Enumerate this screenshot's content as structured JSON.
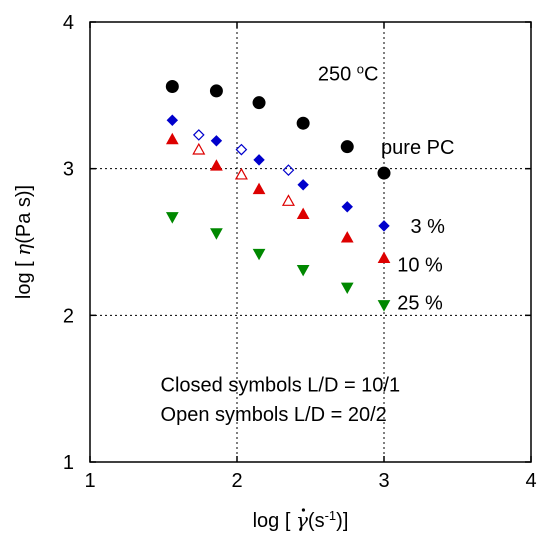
{
  "chart_data": {
    "type": "scatter",
    "xlim": [
      1,
      4
    ],
    "ylim": [
      1,
      4
    ],
    "x_ticks": [
      "1",
      "2",
      "3",
      "4"
    ],
    "y_ticks": [
      "1",
      "2",
      "3",
      "4"
    ],
    "grid": "dotted lines at x=2, x=3, y=2, y=3",
    "xlabel": {
      "pre": "log [ ",
      "sym": "γ",
      "unit_pre": "(s",
      "sup": "-1",
      "post": ")]"
    },
    "ylabel": {
      "pre": "log [ ",
      "sym": "η",
      "post": "(Pa s)]"
    },
    "series": [
      {
        "label": "pure PC",
        "color": "#000000",
        "marker": "circle",
        "filled": true,
        "x": [
          1.56,
          1.86,
          2.15,
          2.45,
          2.75,
          3.0
        ],
        "y": [
          3.56,
          3.53,
          3.45,
          3.31,
          3.15,
          2.97
        ]
      },
      {
        "label": "3 %",
        "color": "#0000cc",
        "marker": "diamond",
        "filled": true,
        "x": [
          1.56,
          1.86,
          2.15,
          2.45,
          2.75,
          3.0
        ],
        "y": [
          3.33,
          3.19,
          3.06,
          2.89,
          2.74,
          2.61
        ]
      },
      {
        "label": "3 %",
        "color": "#0000cc",
        "marker": "diamond",
        "filled": false,
        "x": [
          1.74,
          2.03,
          2.35
        ],
        "y": [
          3.23,
          3.13,
          2.99
        ]
      },
      {
        "label": "10 %",
        "color": "#dd0000",
        "marker": "triangle-up",
        "filled": true,
        "x": [
          1.56,
          1.86,
          2.15,
          2.45,
          2.75,
          3.0
        ],
        "y": [
          3.2,
          3.02,
          2.86,
          2.69,
          2.53,
          2.39
        ]
      },
      {
        "label": "10 %",
        "color": "#dd0000",
        "marker": "triangle-up",
        "filled": false,
        "x": [
          1.74,
          2.03,
          2.35
        ],
        "y": [
          3.13,
          2.96,
          2.78
        ]
      },
      {
        "label": "25 %",
        "color": "#008800",
        "marker": "triangle-down",
        "filled": true,
        "x": [
          1.56,
          1.86,
          2.15,
          2.45,
          2.75,
          3.0
        ],
        "y": [
          2.67,
          2.56,
          2.42,
          2.31,
          2.19,
          2.07
        ]
      }
    ],
    "annotations": [
      {
        "text": "250 ",
        "sup": "o",
        "after": "C",
        "at": [
          2.55,
          3.6
        ],
        "color": "#000000"
      },
      {
        "text": "pure PC",
        "at": [
          2.98,
          3.1
        ],
        "color": "#000000"
      },
      {
        "text": "3 %",
        "at": [
          3.18,
          2.56
        ],
        "color": "#0000cc"
      },
      {
        "text": "10 %",
        "at": [
          3.09,
          2.3
        ],
        "color": "#dd0000"
      },
      {
        "text": "25 %",
        "at": [
          3.09,
          2.04
        ],
        "color": "#008800"
      },
      {
        "text": "Closed symbols L/D = 10/1",
        "at": [
          1.48,
          1.48
        ],
        "color": "#000000"
      },
      {
        "text": "Open symbols   L/D = 20/2",
        "at": [
          1.48,
          1.28
        ],
        "color": "#000000"
      }
    ]
  }
}
